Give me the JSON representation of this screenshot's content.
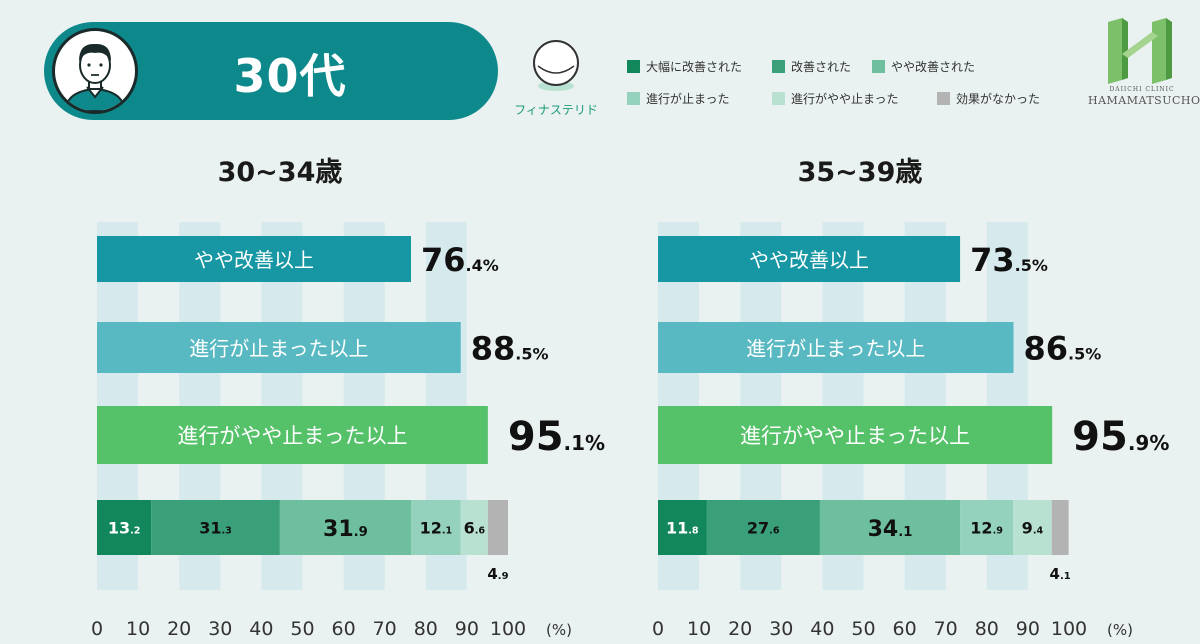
{
  "header": {
    "age_group": "30代",
    "drug_label": "フィナステリド"
  },
  "legend": [
    {
      "label": "大幅に改善された",
      "color": "#13875c"
    },
    {
      "label": "改善された",
      "color": "#3aa07a"
    },
    {
      "label": "やや改善された",
      "color": "#6dbf9e"
    },
    {
      "label": "進行が止まった",
      "color": "#94d2bd"
    },
    {
      "label": "進行がやや止まった",
      "color": "#b9e1d1"
    },
    {
      "label": "効果がなかった",
      "color": "#b3b3b3"
    }
  ],
  "logo": {
    "line1": "DAIICHI CLINIC",
    "line2": "HAMAMATSUCHO"
  },
  "chart_data": [
    {
      "type": "bar",
      "title": "30~34歳",
      "x_ticks": [
        "0",
        "10",
        "20",
        "30",
        "40",
        "50",
        "60",
        "70",
        "80",
        "90",
        "100"
      ],
      "unit": "(%)",
      "xlim": [
        0,
        100
      ],
      "summary_bars": [
        {
          "label": "やや改善以上",
          "value": 76.4,
          "int": "76",
          "dec": ".4",
          "pct": "%",
          "color": "#1796a4"
        },
        {
          "label": "進行が止まった以上",
          "value": 88.5,
          "int": "88",
          "dec": ".5",
          "pct": "%",
          "color": "#59b9c2"
        },
        {
          "label": "進行がやや止まった以上",
          "value": 95.1,
          "int": "95",
          "dec": ".1",
          "pct": "%",
          "color": "#55c269"
        }
      ],
      "stacked": [
        {
          "value": 13.2,
          "int": "13",
          "dec": ".2"
        },
        {
          "value": 31.3,
          "int": "31",
          "dec": ".3"
        },
        {
          "value": 31.9,
          "int": "31",
          "dec": ".9"
        },
        {
          "value": 12.1,
          "int": "12",
          "dec": ".1"
        },
        {
          "value": 6.6,
          "int": "6",
          "dec": ".6"
        },
        {
          "value": 4.9,
          "int": "4",
          "dec": ".9"
        }
      ]
    },
    {
      "type": "bar",
      "title": "35~39歳",
      "x_ticks": [
        "0",
        "10",
        "20",
        "30",
        "40",
        "50",
        "60",
        "70",
        "80",
        "90",
        "100"
      ],
      "unit": "(%)",
      "xlim": [
        0,
        100
      ],
      "summary_bars": [
        {
          "label": "やや改善以上",
          "value": 73.5,
          "int": "73",
          "dec": ".5",
          "pct": "%",
          "color": "#1796a4"
        },
        {
          "label": "進行が止まった以上",
          "value": 86.5,
          "int": "86",
          "dec": ".5",
          "pct": "%",
          "color": "#59b9c2"
        },
        {
          "label": "進行がやや止まった以上",
          "value": 95.9,
          "int": "95",
          "dec": ".9",
          "pct": "%",
          "color": "#55c269"
        }
      ],
      "stacked": [
        {
          "value": 11.8,
          "int": "11",
          "dec": ".8"
        },
        {
          "value": 27.6,
          "int": "27",
          "dec": ".6"
        },
        {
          "value": 34.1,
          "int": "34",
          "dec": ".1"
        },
        {
          "value": 12.9,
          "int": "12",
          "dec": ".9"
        },
        {
          "value": 9.4,
          "int": "9",
          "dec": ".4"
        },
        {
          "value": 4.1,
          "int": "4",
          "dec": ".1"
        }
      ]
    }
  ]
}
